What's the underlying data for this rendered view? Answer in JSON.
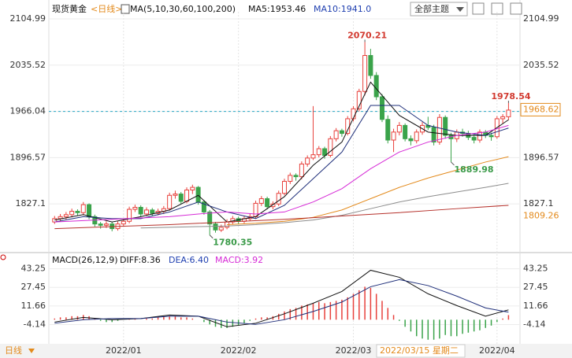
{
  "header": {
    "symbol": "现货黄金",
    "period": "<日线>",
    "ma_params": "MA(5,10,30,60,100,200)",
    "ma5": "MA5:1953.46",
    "ma10": "MA10:1941.0",
    "theme_button": "全部主题"
  },
  "macd_header": {
    "params": "MACD(26,12,9)",
    "diff": "DIFF:8.36",
    "dea": "DEA:6.40",
    "macd": "MACD:3.92"
  },
  "footer": {
    "period": "日线",
    "cursor_date": "2022/03/15 星期二"
  },
  "chart_data": {
    "type": "candlestick",
    "ylim": [
      1757.6,
      2115.6
    ],
    "yticks": [
      2104.99,
      2035.52,
      1966.04,
      1896.57,
      1827.1
    ],
    "price_tags": [
      1968.62,
      1809.26
    ],
    "xlim": [
      -1,
      81
    ],
    "xticks": [
      {
        "value": 12,
        "label": "2022/01"
      },
      {
        "value": 32,
        "label": "2022/02"
      },
      {
        "value": 52,
        "label": "2022/03"
      },
      {
        "value": 77,
        "label": "2022/04"
      }
    ],
    "up_color": "#e8413c",
    "down_color": "#3aa34a",
    "ohlc": [
      [
        1800,
        1809,
        1797,
        1805
      ],
      [
        1805,
        1812,
        1801,
        1808
      ],
      [
        1808,
        1815,
        1804,
        1811
      ],
      [
        1811,
        1820,
        1807,
        1816
      ],
      [
        1816,
        1819,
        1809,
        1814
      ],
      [
        1814,
        1830,
        1810,
        1826
      ],
      [
        1826,
        1828,
        1804,
        1808
      ],
      [
        1808,
        1811,
        1793,
        1797
      ],
      [
        1797,
        1800,
        1790,
        1795
      ],
      [
        1795,
        1801,
        1791,
        1797
      ],
      [
        1797,
        1800,
        1786,
        1790
      ],
      [
        1790,
        1801,
        1787,
        1797
      ],
      [
        1797,
        1805,
        1794,
        1801
      ],
      [
        1801,
        1823,
        1798,
        1819
      ],
      [
        1819,
        1826,
        1815,
        1822
      ],
      [
        1822,
        1825,
        1808,
        1812
      ],
      [
        1812,
        1822,
        1809,
        1818
      ],
      [
        1818,
        1821,
        1809,
        1813
      ],
      [
        1813,
        1820,
        1810,
        1816
      ],
      [
        1816,
        1824,
        1812,
        1820
      ],
      [
        1820,
        1844,
        1817,
        1840
      ],
      [
        1840,
        1847,
        1835,
        1842
      ],
      [
        1842,
        1845,
        1827,
        1831
      ],
      [
        1831,
        1852,
        1828,
        1848
      ],
      [
        1848,
        1856,
        1842,
        1852
      ],
      [
        1852,
        1854,
        1826,
        1830
      ],
      [
        1830,
        1833,
        1811,
        1815
      ],
      [
        1815,
        1818,
        1780.35,
        1797
      ],
      [
        1797,
        1800,
        1784,
        1788
      ],
      [
        1788,
        1796,
        1785,
        1792
      ],
      [
        1792,
        1804,
        1789,
        1800
      ],
      [
        1800,
        1809,
        1796,
        1805
      ],
      [
        1805,
        1808,
        1797,
        1801
      ],
      [
        1801,
        1809,
        1798,
        1805
      ],
      [
        1805,
        1812,
        1802,
        1808
      ],
      [
        1808,
        1832,
        1805,
        1828
      ],
      [
        1828,
        1839,
        1824,
        1835
      ],
      [
        1835,
        1838,
        1819,
        1823
      ],
      [
        1823,
        1831,
        1819,
        1827
      ],
      [
        1827,
        1847,
        1824,
        1843
      ],
      [
        1843,
        1865,
        1840,
        1861
      ],
      [
        1861,
        1874,
        1857,
        1870
      ],
      [
        1870,
        1873,
        1862,
        1868
      ],
      [
        1868,
        1891,
        1864,
        1887
      ],
      [
        1887,
        1900,
        1883,
        1896
      ],
      [
        1896,
        1974,
        1893,
        1901
      ],
      [
        1901,
        1914,
        1897,
        1910
      ],
      [
        1910,
        1913,
        1895,
        1900
      ],
      [
        1900,
        1929,
        1897,
        1925
      ],
      [
        1925,
        1941,
        1921,
        1937
      ],
      [
        1937,
        1940,
        1928,
        1933
      ],
      [
        1933,
        1959,
        1930,
        1955
      ],
      [
        1955,
        1974,
        1951,
        1970
      ],
      [
        1970,
        2000,
        1966,
        1996
      ],
      [
        1996,
        2070.21,
        1990,
        2050
      ],
      [
        2050,
        2060,
        2015,
        2020
      ],
      [
        2020,
        2025,
        1983,
        1988
      ],
      [
        1988,
        1992,
        1950,
        1954
      ],
      [
        1954,
        1960,
        1918,
        1923
      ],
      [
        1923,
        1940,
        1905,
        1935
      ],
      [
        1935,
        1950,
        1930,
        1945
      ],
      [
        1945,
        1948,
        1921,
        1925
      ],
      [
        1925,
        1930,
        1915,
        1922
      ],
      [
        1922,
        1939,
        1918,
        1935
      ],
      [
        1935,
        1950,
        1931,
        1945
      ],
      [
        1945,
        1958,
        1938,
        1942
      ],
      [
        1942,
        1946,
        1915,
        1920
      ],
      [
        1920,
        1962,
        1916,
        1957
      ],
      [
        1957,
        1960,
        1925,
        1930
      ],
      [
        1930,
        1934,
        1889.98,
        1925
      ],
      [
        1925,
        1939,
        1920,
        1935
      ],
      [
        1935,
        1940,
        1928,
        1933
      ],
      [
        1933,
        1937,
        1923,
        1927
      ],
      [
        1927,
        1931,
        1918,
        1923
      ],
      [
        1923,
        1939,
        1919,
        1935
      ],
      [
        1935,
        1938,
        1926,
        1930
      ],
      [
        1930,
        1934,
        1922,
        1928
      ],
      [
        1928,
        1959,
        1925,
        1955
      ],
      [
        1955,
        1962,
        1948,
        1958
      ],
      [
        1958,
        1978.54,
        1953,
        1968
      ]
    ],
    "ma_lines": [
      {
        "color": "#111111",
        "x": [
          0,
          5,
          10,
          15,
          20,
          25,
          30,
          35,
          40,
          45,
          50,
          55,
          60,
          65,
          70,
          75,
          79
        ],
        "values": [
          1803,
          1811,
          1800,
          1808,
          1818,
          1840,
          1800,
          1808,
          1838,
          1885,
          1920,
          2010,
          1960,
          1935,
          1930,
          1930,
          1953.46
        ]
      },
      {
        "color": "#1f2f7a",
        "x": [
          0,
          5,
          10,
          15,
          20,
          25,
          30,
          35,
          40,
          45,
          50,
          55,
          60,
          65,
          70,
          75,
          79
        ],
        "values": [
          1800,
          1808,
          1805,
          1805,
          1815,
          1830,
          1815,
          1805,
          1825,
          1865,
          1905,
          1975,
          1975,
          1945,
          1935,
          1930,
          1941.0
        ]
      },
      {
        "color": "#d62ad6",
        "x": [
          0,
          5,
          10,
          15,
          20,
          25,
          30,
          35,
          40,
          45,
          50,
          55,
          60,
          65,
          70,
          75,
          79
        ],
        "values": [
          1800,
          1802,
          1804,
          1806,
          1808,
          1812,
          1815,
          1812,
          1815,
          1830,
          1850,
          1880,
          1905,
          1920,
          1930,
          1935,
          1945
        ]
      },
      {
        "color": "#e38a1c",
        "x": [
          30,
          35,
          40,
          45,
          50,
          55,
          60,
          65,
          70,
          75,
          79
        ],
        "values": [
          1796,
          1798,
          1801,
          1807,
          1818,
          1835,
          1852,
          1866,
          1878,
          1890,
          1898
        ]
      },
      {
        "color": "#8c8c8c",
        "x": [
          15,
          20,
          25,
          30,
          35,
          40,
          45,
          50,
          55,
          60,
          65,
          70,
          75,
          79
        ],
        "values": [
          1791,
          1792,
          1793,
          1794,
          1796,
          1799,
          1803,
          1810,
          1820,
          1830,
          1838,
          1845,
          1852,
          1858
        ]
      },
      {
        "color": "#b5302a",
        "x": [
          0,
          10,
          20,
          30,
          40,
          50,
          60,
          70,
          79
        ],
        "values": [
          1790,
          1793,
          1796,
          1800,
          1804,
          1809,
          1814,
          1820,
          1825
        ]
      }
    ],
    "macd": {
      "ylim": [
        -20.5,
        51
      ],
      "yticks": [
        43.25,
        27.45,
        11.66,
        -4.14
      ],
      "diff": {
        "color": "#111111",
        "x": [
          0,
          5,
          10,
          15,
          20,
          25,
          30,
          35,
          40,
          45,
          50,
          55,
          60,
          65,
          70,
          75,
          79
        ],
        "values": [
          -2,
          2,
          0,
          1,
          4,
          3,
          -6,
          -3,
          5,
          14,
          24,
          42,
          36,
          22,
          12,
          3,
          8.36
        ]
      },
      "dea": {
        "color": "#1f2f7a",
        "x": [
          0,
          5,
          10,
          15,
          20,
          25,
          30,
          35,
          40,
          45,
          50,
          55,
          60,
          65,
          70,
          75,
          79
        ],
        "values": [
          -3,
          0,
          1,
          1,
          3,
          3,
          -2,
          -4,
          0,
          7,
          15,
          28,
          34,
          29,
          20,
          10,
          6.4
        ]
      },
      "histogram": [
        1,
        2,
        2,
        3,
        3,
        4,
        3,
        1,
        -1,
        -2,
        -2,
        -1,
        0,
        1,
        1,
        0,
        1,
        1,
        2,
        3,
        3,
        3,
        2,
        2,
        1,
        0,
        -2,
        -4,
        -6,
        -7,
        -7,
        -6,
        -5,
        -3,
        -1,
        1,
        2,
        2,
        3,
        5,
        7,
        9,
        10,
        12,
        13,
        14,
        15,
        14,
        15,
        16,
        17,
        19,
        22,
        25,
        28,
        27,
        22,
        16,
        10,
        4,
        -1,
        -6,
        -10,
        -14,
        -16,
        -17,
        -17,
        -16,
        -13,
        -14,
        -14,
        -12,
        -11,
        -10,
        -9,
        -7,
        -5,
        -2,
        1,
        3.92
      ]
    }
  }
}
